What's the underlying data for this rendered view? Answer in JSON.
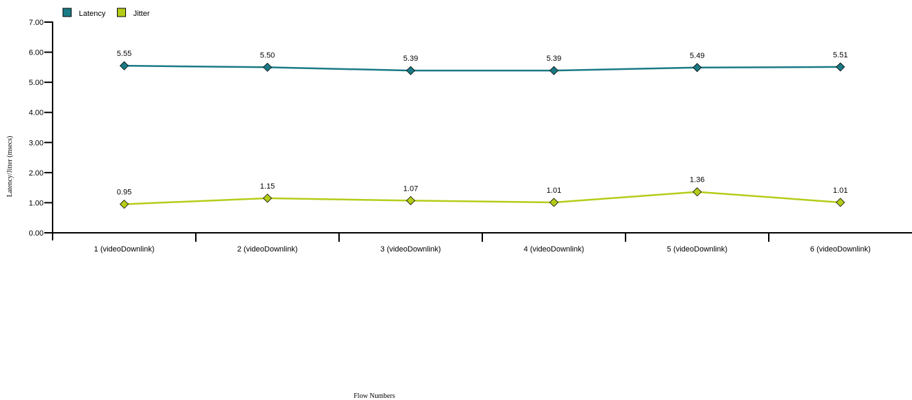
{
  "chart_data": {
    "type": "line",
    "categories": [
      "1 (videoDownlink)",
      "2 (videoDownlink)",
      "3 (videoDownlink)",
      "4 (videoDownlink)",
      "5 (videoDownlink)",
      "6 (videoDownlink)"
    ],
    "series": [
      {
        "name": "Latency",
        "values": [
          5.55,
          5.5,
          5.39,
          5.39,
          5.49,
          5.51
        ],
        "labels": [
          "5.55",
          "5.50",
          "5.39",
          "5.39",
          "5.49",
          "5.51"
        ],
        "color": "#1a7a85"
      },
      {
        "name": "Jitter",
        "values": [
          0.95,
          1.15,
          1.07,
          1.01,
          1.36,
          1.01
        ],
        "labels": [
          "0.95",
          "1.15",
          "1.07",
          "1.01",
          "1.36",
          "1.01"
        ],
        "color": "#b5cc18"
      }
    ],
    "xlabel": "Flow Numbers",
    "ylabel": "Latency/Jitter (msecs)",
    "ylim": [
      0,
      7
    ],
    "yticks": [
      "0.00",
      "1.00",
      "2.00",
      "3.00",
      "4.00",
      "5.00",
      "6.00",
      "7.00"
    ],
    "legend_position": "top-left",
    "grid": false
  }
}
